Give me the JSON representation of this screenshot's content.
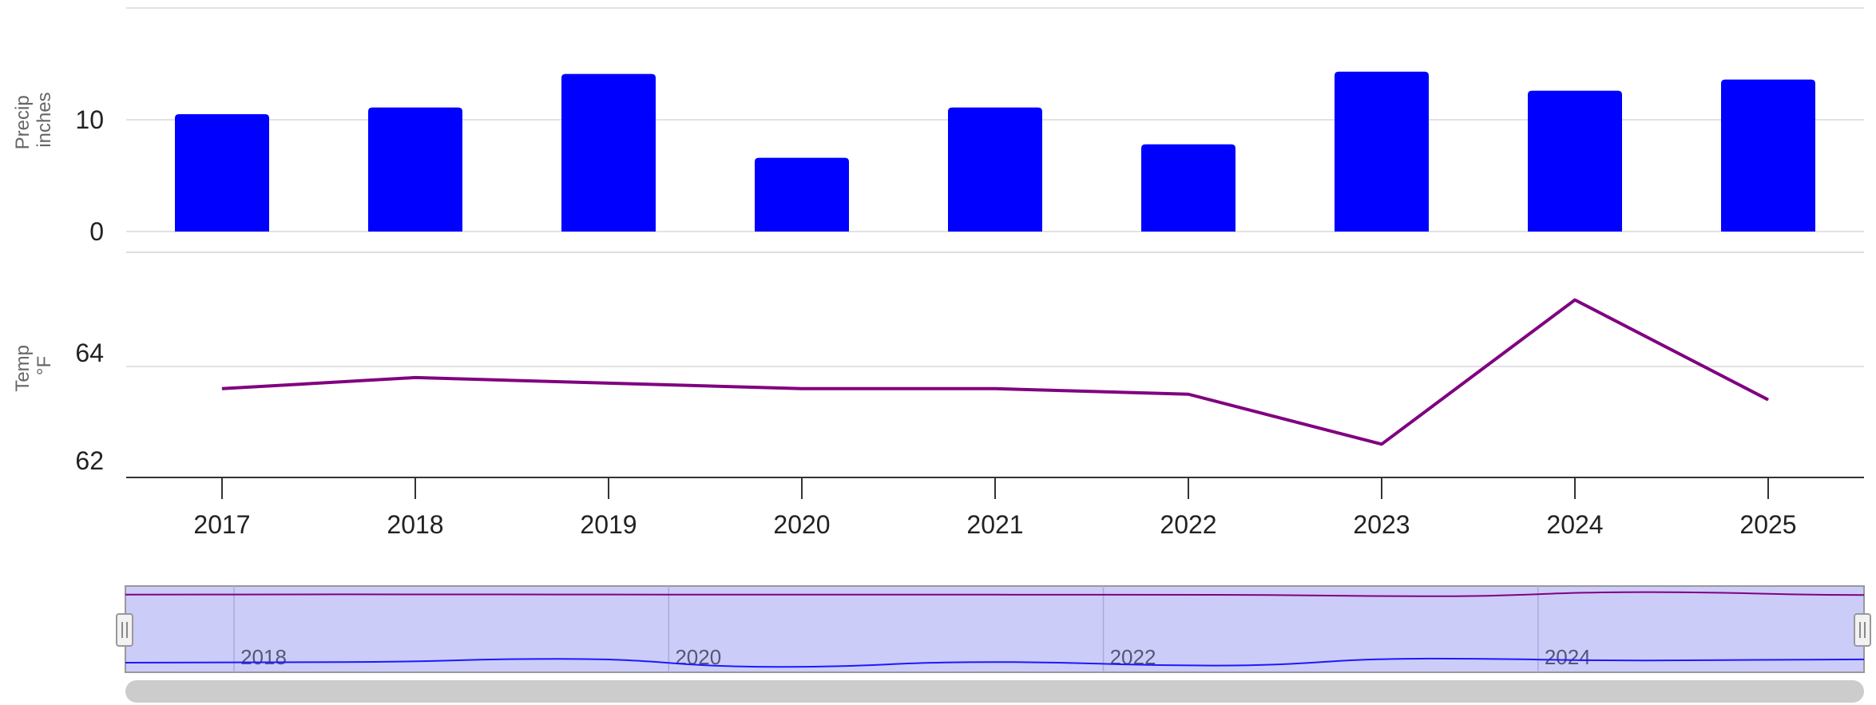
{
  "chart_data": {
    "type": "bar",
    "categories": [
      "2017",
      "2018",
      "2019",
      "2020",
      "2021",
      "2022",
      "2023",
      "2024",
      "2025"
    ],
    "panels": [
      {
        "type": "bar",
        "ylabel": "Precip",
        "yunit": "inches",
        "ylim": [
          0,
          20
        ],
        "yticks": [
          0,
          10
        ],
        "values": [
          10.5,
          11.1,
          14.1,
          6.6,
          11.1,
          7.8,
          14.3,
          12.6,
          13.6
        ],
        "color": "#0000ff"
      },
      {
        "type": "line",
        "ylabel": "Temp",
        "yunit": "°F",
        "ylim": [
          62,
          66
        ],
        "yticks": [
          62,
          64
        ],
        "values": [
          63.6,
          63.8,
          63.7,
          63.6,
          63.6,
          63.5,
          62.6,
          65.2,
          63.4
        ],
        "color": "#800080"
      }
    ],
    "grid": true,
    "legend": "none",
    "navigator": {
      "labels": [
        "2018",
        "2020",
        "2022",
        "2024"
      ],
      "fill": "#ccccf9",
      "line_colors": [
        "#1a1aff",
        "#800080"
      ]
    }
  }
}
